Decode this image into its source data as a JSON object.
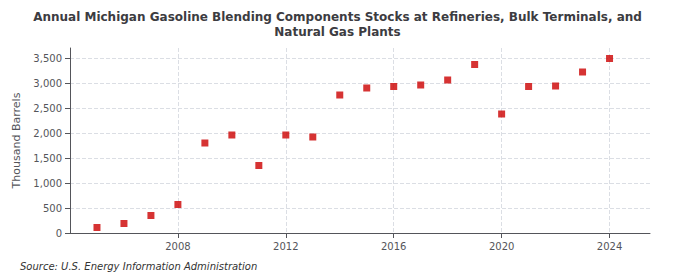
{
  "chart_data": {
    "type": "scatter",
    "title": "Annual Michigan Gasoline Blending Components Stocks at Refineries, Bulk Terminals, and\nNatural Gas Plants",
    "ylabel": "Thousand Barrels",
    "annotations": [
      "Source: U.S. Energy Information Administration"
    ],
    "x": [
      2005,
      2006,
      2007,
      2008,
      2009,
      2010,
      2011,
      2012,
      2013,
      2014,
      2015,
      2016,
      2017,
      2018,
      2019,
      2020,
      2021,
      2022,
      2023,
      2024
    ],
    "values": [
      110,
      190,
      350,
      570,
      1800,
      1960,
      1350,
      1960,
      1920,
      2760,
      2900,
      2930,
      2960,
      3060,
      3370,
      2380,
      2930,
      2940,
      3220,
      3490
    ],
    "color": "#cc0000",
    "marker": "square",
    "xlim": [
      2004,
      2025.5
    ],
    "xticks": [
      2008,
      2012,
      2016,
      2020,
      2024
    ],
    "ylim": [
      0,
      3700
    ],
    "yticks": [
      0,
      500,
      {
        "value": 1000,
        "label": "1,000"
      },
      {
        "value": 1500,
        "label": "1,500"
      },
      {
        "value": 2000,
        "label": "2,000"
      },
      {
        "value": 2500,
        "label": "2,500"
      },
      {
        "value": 3000,
        "label": "3,000"
      },
      {
        "value": 3500,
        "label": "3,500"
      }
    ],
    "grid": true
  }
}
